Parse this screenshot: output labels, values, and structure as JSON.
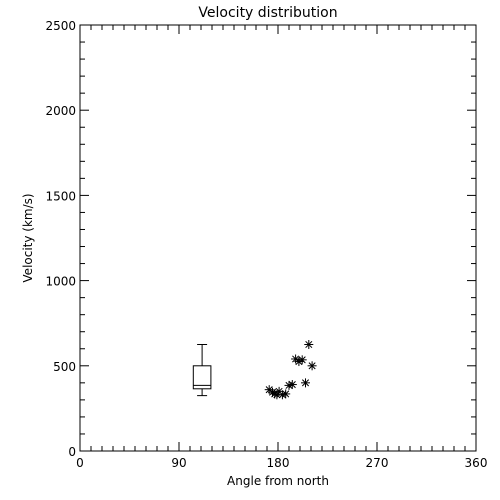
{
  "chart_data": {
    "type": "scatter",
    "title": "Velocity distribution",
    "xlabel": "Angle from north",
    "ylabel": "Velocity (km/s)",
    "xlim": [
      0,
      360
    ],
    "ylim": [
      0,
      2500
    ],
    "x_ticks": [
      {
        "value": 0,
        "label": "0"
      },
      {
        "value": 90,
        "label": "90"
      },
      {
        "value": 180,
        "label": "180"
      },
      {
        "value": 270,
        "label": "270"
      },
      {
        "value": 360,
        "label": "360"
      }
    ],
    "y_ticks": [
      {
        "value": 0,
        "label": "0"
      },
      {
        "value": 500,
        "label": "500"
      },
      {
        "value": 1000,
        "label": "1000"
      },
      {
        "value": 1500,
        "label": "1500"
      },
      {
        "value": 2000,
        "label": "2000"
      },
      {
        "value": 2500,
        "label": "2500"
      }
    ],
    "grid": false,
    "series": [
      {
        "marker": "asterisk",
        "points": [
          {
            "x": 172,
            "y": 360
          },
          {
            "x": 175,
            "y": 345
          },
          {
            "x": 177,
            "y": 335
          },
          {
            "x": 179,
            "y": 330
          },
          {
            "x": 181,
            "y": 350
          },
          {
            "x": 184,
            "y": 330
          },
          {
            "x": 187,
            "y": 335
          },
          {
            "x": 190,
            "y": 385
          },
          {
            "x": 193,
            "y": 390
          },
          {
            "x": 196,
            "y": 540
          },
          {
            "x": 199,
            "y": 525
          },
          {
            "x": 202,
            "y": 535
          },
          {
            "x": 205,
            "y": 400
          },
          {
            "x": 208,
            "y": 625
          },
          {
            "x": 211,
            "y": 500
          }
        ]
      }
    ],
    "boxplot": {
      "x_range": [
        103,
        119
      ],
      "min": 325,
      "q1": 365,
      "median": 385,
      "q3": 500,
      "max": 625
    }
  }
}
